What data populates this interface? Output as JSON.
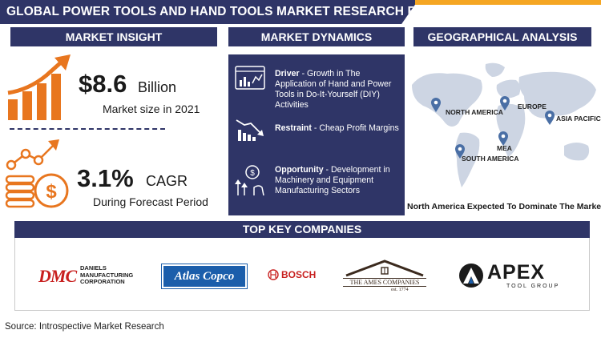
{
  "title": "GLOBAL POWER TOOLS AND HAND TOOLS  MARKET RESEARCH REPORT",
  "sections": {
    "insight": "MARKET INSIGHT",
    "dynamics": "MARKET DYNAMICS",
    "geo": "GEOGRAPHICAL ANALYSIS",
    "companies": "TOP KEY COMPANIES"
  },
  "insight": {
    "market_value": "$8.6",
    "market_unit": "Billion",
    "market_caption": "Market size in 2021",
    "cagr_value": "3.1%",
    "cagr_unit": "CAGR",
    "cagr_caption": "During Forecast Period"
  },
  "dynamics": {
    "driver_label": "Driver",
    "driver_text": " - Growth in The Application of Hand and Power Tools in Do-It-Yourself (DIY) Activities",
    "restraint_label": "Restraint",
    "restraint_text": " - Cheap Profit Margins",
    "opportunity_label": "Opportunity",
    "opportunity_text": " - Development in Machinery and Equipment Manufacturing Sectors"
  },
  "geo": {
    "regions": {
      "north_america": "NORTH AMERICA",
      "europe": "EUROPE",
      "asia_pacific": "ASIA PACIFIC",
      "south_america": "SOUTH AMERICA",
      "mea": "MEA"
    },
    "caption": "North America Expected To Dominate The Market"
  },
  "companies": {
    "dmc_mark": "DMC",
    "dmc_line1": "DANIELS",
    "dmc_line2": "MANUFACTURING",
    "dmc_line3": "CORPORATION",
    "atlas": "Atlas Copco",
    "bosch": "BOSCH",
    "ames_main": "THE AMES COMPANIES",
    "ames_est": "est. 1774",
    "apex_main": "APEX",
    "apex_sub": "TOOL GROUP"
  },
  "source": "Source: Introspective Market Research",
  "colors": {
    "navy": "#2f3567",
    "orange": "#e8761f",
    "accent_yellow": "#f5a623",
    "dmc_red": "#c8201f",
    "atlas_blue": "#1b5eab",
    "pin_blue": "#4a6fa5"
  }
}
